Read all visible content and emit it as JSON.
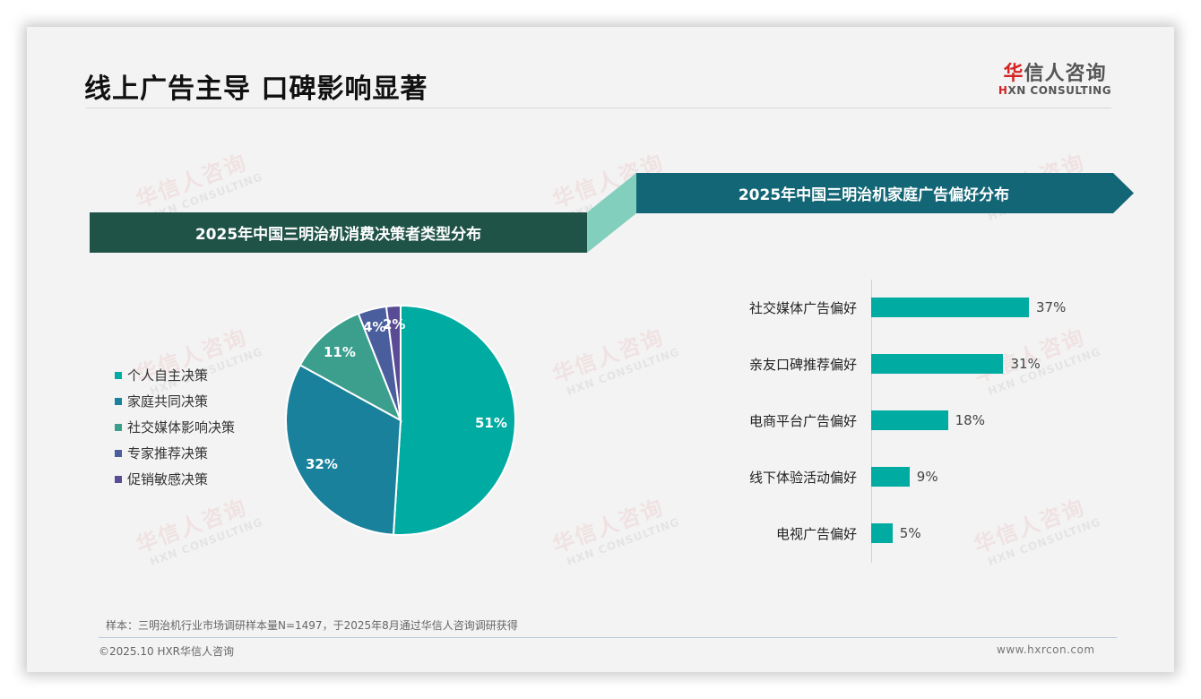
{
  "header": {
    "title": "线上广告主导 口碑影响显著",
    "logo": {
      "cn_first": "华",
      "cn_rest": "信人咨询",
      "en_first": "H",
      "en_rest": "XN CONSULTING"
    }
  },
  "watermark": {
    "cn": "华信人咨询",
    "en": "HXN CONSULTING"
  },
  "left_panel": {
    "banner_title": "2025年中国三明治机消费决策者类型分布",
    "legend": [
      {
        "label": "个人自主决策",
        "color": "#00aba2"
      },
      {
        "label": "家庭共同决策",
        "color": "#1a819c"
      },
      {
        "label": "社交媒体影响决策",
        "color": "#3c9f8e"
      },
      {
        "label": "专家推荐决策",
        "color": "#4a5d9c"
      },
      {
        "label": "促销敏感决策",
        "color": "#5a4c94"
      }
    ],
    "pie_labels": [
      "51%",
      "32%",
      "11%",
      "4%",
      "2%"
    ]
  },
  "right_panel": {
    "banner_title": "2025年中国三明治机家庭广告偏好分布",
    "bars": [
      {
        "label": "社交媒体广告偏好",
        "value": "37%"
      },
      {
        "label": "亲友口碑推荐偏好",
        "value": "31%"
      },
      {
        "label": "电商平台广告偏好",
        "value": "18%"
      },
      {
        "label": "线下体验活动偏好",
        "value": "9%"
      },
      {
        "label": "电视广告偏好",
        "value": "5%"
      }
    ]
  },
  "chart_data": [
    {
      "type": "pie",
      "title": "2025年中国三明治机消费决策者类型分布",
      "categories": [
        "个人自主决策",
        "家庭共同决策",
        "社交媒体影响决策",
        "专家推荐决策",
        "促销敏感决策"
      ],
      "values": [
        51,
        32,
        11,
        4,
        2
      ],
      "colors": [
        "#00aba2",
        "#1a819c",
        "#3c9f8e",
        "#4a5d9c",
        "#5a4c94"
      ],
      "legend_position": "left",
      "unit": "%"
    },
    {
      "type": "bar",
      "orientation": "horizontal",
      "title": "2025年中国三明治机家庭广告偏好分布",
      "categories": [
        "社交媒体广告偏好",
        "亲友口碑推荐偏好",
        "电商平台广告偏好",
        "线下体验活动偏好",
        "电视广告偏好"
      ],
      "values": [
        37,
        31,
        18,
        9,
        5
      ],
      "color": "#00aba2",
      "unit": "%",
      "grid": false
    }
  ],
  "colors": {
    "banner_left": "#205347",
    "banner_right": "#136676",
    "connector": "#82cfbd",
    "bar": "#00aba2"
  },
  "footer": {
    "note": "样本：三明治机行业市场调研样本量N=1497，于2025年8月通过华信人咨询调研获得",
    "copyright": "©2025.10 HXR华信人咨询",
    "website": "www.hxrcon.com"
  }
}
